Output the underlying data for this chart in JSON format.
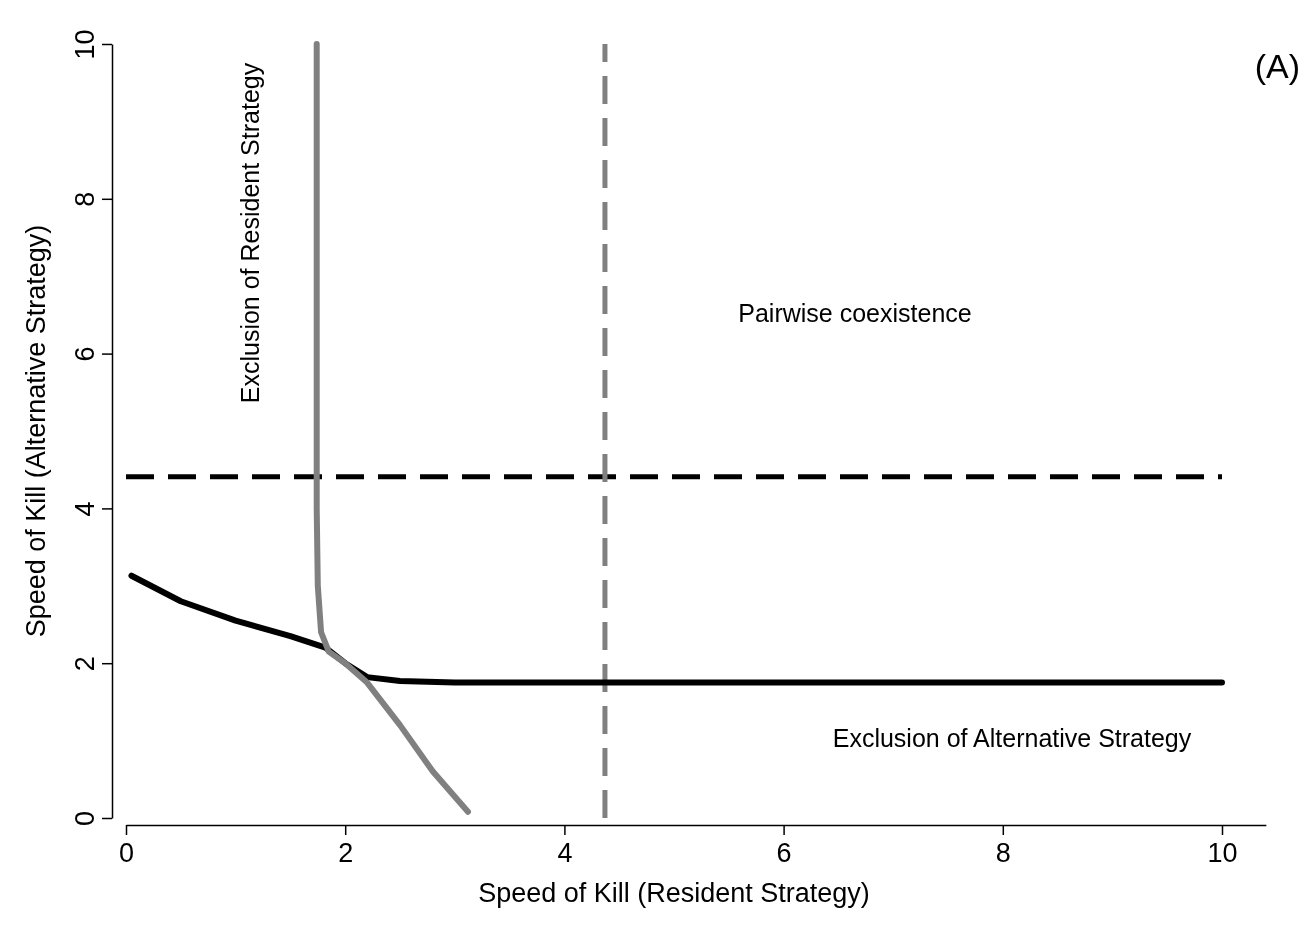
{
  "chart_data": {
    "type": "line",
    "xlabel": "Speed of Kill (Resident Strategy)",
    "ylabel": "Speed of Kill (Alternative Strategy)",
    "xlim": [
      0,
      10.4
    ],
    "ylim": [
      0,
      10
    ],
    "xticks": [
      0,
      2,
      4,
      6,
      8,
      10
    ],
    "yticks": [
      0,
      2,
      4,
      6,
      8,
      10
    ],
    "grid": false,
    "marker": "none",
    "line_style": "solid",
    "series": [
      {
        "color": "#000000",
        "x": [
          0.05,
          0.5,
          1.0,
          1.5,
          1.82,
          2.0,
          2.2,
          2.5,
          3.0,
          4.0,
          6.0,
          8.0,
          10.0
        ],
        "values": [
          3.13,
          2.8,
          2.55,
          2.35,
          2.2,
          2.0,
          1.82,
          1.77,
          1.75,
          1.75,
          1.75,
          1.75,
          1.75
        ]
      },
      {
        "color": "#808080",
        "x": [
          1.74,
          1.74,
          1.74,
          1.75,
          1.78,
          1.85,
          2.0,
          2.2,
          2.5,
          2.8,
          3.12
        ],
        "values": [
          10,
          6,
          4,
          3.0,
          2.4,
          2.15,
          2.0,
          1.75,
          1.2,
          0.6,
          0.08
        ]
      }
    ],
    "ref_lines": [
      {
        "axis": "y",
        "value": 4.41,
        "color": "#000000",
        "line_style": "dashed"
      },
      {
        "axis": "x",
        "value": 4.37,
        "color": "#808080",
        "line_style": "dashed"
      }
    ],
    "annotations": [
      "(A)",
      "Exclusion of Resident Strategy",
      "Pairwise coexistence",
      "Exclusion of Alternative Strategy"
    ]
  }
}
